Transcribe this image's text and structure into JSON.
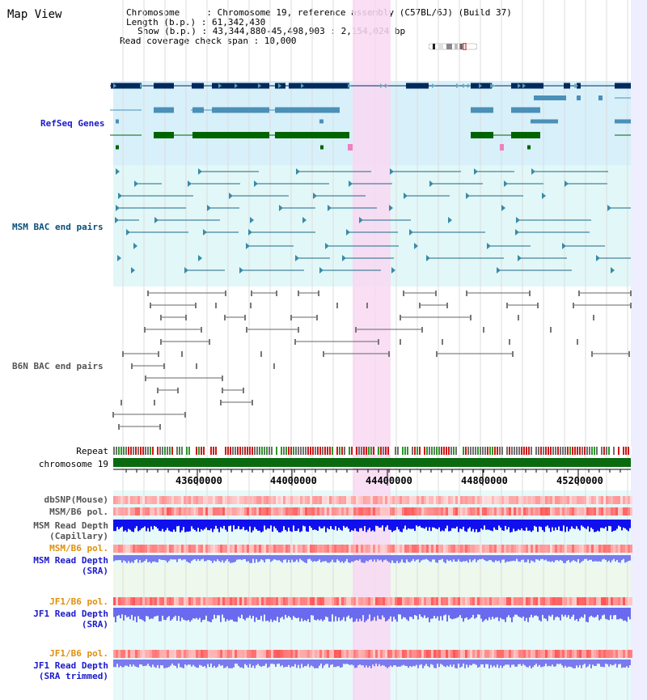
{
  "page": {
    "title": "Map View"
  },
  "info": {
    "chromosome": "Chromosome     : Chromosome 19, reference assembly (C57BL/6J) (Build 37)",
    "length": "Length (b.p.) : 61,342,430",
    "show": "Show (b.p.) : 43,344,880-45,498,903 : 2,154,024 bp",
    "span": "Read coverage check span : 10,000"
  },
  "tracks": {
    "refseq": "RefSeq Genes",
    "msm_bac": "MSM BAC end pairs",
    "b6n_bac": "B6N BAC end pairs",
    "repeat": "Repeat",
    "chromosome": "chromosome 19",
    "dbsnp": "dbSNP(Mouse)",
    "msm_pol": "MSM/B6 pol.",
    "msm_cap_1": "MSM Read Depth",
    "msm_cap_2": "(Capillary)",
    "msm_pol2": "MSM/B6 pol.",
    "msm_sra_1": "MSM Read Depth",
    "msm_sra_2": "(SRA)",
    "jf1_pol": "JF1/B6 pol.",
    "jf1_sra_1": "JF1 Read Depth",
    "jf1_sra_2": "(SRA)",
    "jf1_pol2": "JF1/B6 pol.",
    "jf1_trim_1": "JF1 Read Depth",
    "jf1_trim_2": "(SRA trimmed)"
  },
  "axis": {
    "ticks": [
      "43600000",
      "44000000",
      "44400000",
      "44800000",
      "45200000"
    ]
  },
  "colors": {
    "refseq_label": "#1a1acc",
    "msm_label": "#0a4f7a",
    "b6n_label": "#555555",
    "pol_label": "#e0900a",
    "depth_label": "#1a1acc",
    "highlight": "#f8d8f2"
  }
}
